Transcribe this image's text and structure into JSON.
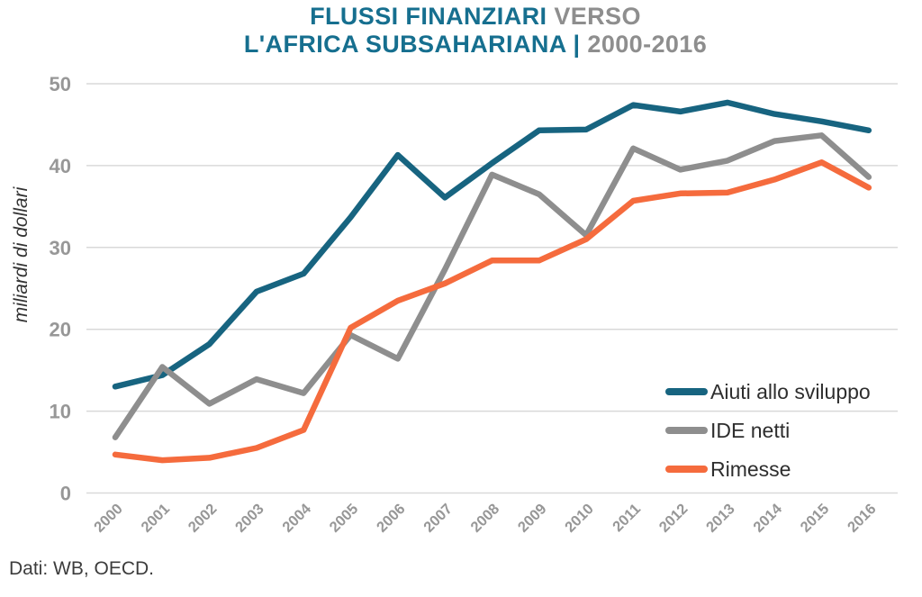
{
  "title": {
    "line1_primary": "FLUSSI FINANZIARI",
    "line1_secondary": "VERSO",
    "line2_primary": "L'AFRICA SUBSAHARIANA |",
    "line2_secondary": "2000-2016"
  },
  "footer": {
    "text": "Dati: WB, OECD."
  },
  "colors": {
    "title_primary": "#166F8F",
    "title_secondary": "#8E8E8E",
    "grid": "#D9D9D9",
    "tick_label": "#979797",
    "axis_title": "#333333",
    "legend_text": "#2E2E2E",
    "background": "#FFFFFF"
  },
  "chart_data": {
    "type": "line",
    "title": "FLUSSI FINANZIARI VERSO L'AFRICA SUBSAHARIANA | 2000-2016",
    "xlabel": "",
    "ylabel": "miliardi di dollari",
    "ylim": [
      0,
      50
    ],
    "yticks": [
      0,
      10,
      20,
      30,
      40,
      50
    ],
    "grid": "horizontal",
    "legend_position": "inside-lower-right",
    "x": [
      2000,
      2001,
      2002,
      2003,
      2004,
      2005,
      2006,
      2007,
      2008,
      2009,
      2010,
      2011,
      2012,
      2013,
      2014,
      2015,
      2016
    ],
    "series": [
      {
        "name": "Aiuti allo sviluppo",
        "slug": "aiuti-allo-sviluppo",
        "color": "#176480",
        "values": [
          13.0,
          14.4,
          18.2,
          24.6,
          26.8,
          33.7,
          41.3,
          36.1,
          40.3,
          44.3,
          44.4,
          47.4,
          46.6,
          47.7,
          46.3,
          45.4,
          44.3
        ]
      },
      {
        "name": "IDE netti",
        "slug": "ide-netti",
        "color": "#8E8E8E",
        "values": [
          6.8,
          15.4,
          10.9,
          13.9,
          12.2,
          19.3,
          16.4,
          27.3,
          38.9,
          36.5,
          31.5,
          42.1,
          39.5,
          40.6,
          43.0,
          43.7,
          38.6
        ]
      },
      {
        "name": "Rimesse",
        "slug": "rimesse",
        "color": "#F56B3D",
        "values": [
          4.7,
          4.0,
          4.3,
          5.5,
          7.7,
          20.2,
          23.5,
          25.6,
          28.4,
          28.4,
          31.0,
          35.7,
          36.6,
          36.7,
          38.3,
          40.4,
          37.3
        ]
      }
    ]
  }
}
